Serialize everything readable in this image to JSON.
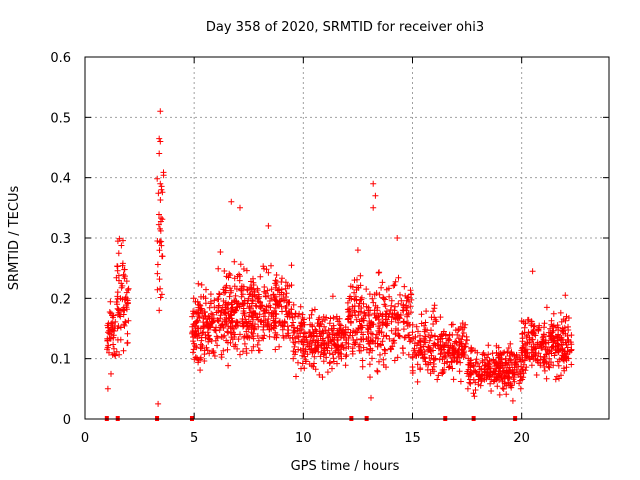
{
  "chart_data": {
    "type": "scatter",
    "title": "Day 358 of 2020, SRMTID for receiver ohi3",
    "xlabel": "GPS time / hours",
    "ylabel": "SRMTID / TECUs",
    "xlim": [
      0,
      24
    ],
    "ylim": [
      0,
      0.6
    ],
    "xticks": [
      "0",
      "5",
      "10",
      "15",
      "20"
    ],
    "yticks": [
      "0",
      "0.1",
      "0.2",
      "0.3",
      "0.4",
      "0.5",
      "0.6"
    ],
    "grid": true,
    "marker": "plus",
    "color": "#ff0000",
    "gap_markers_x": [
      1.0,
      1.5,
      3.3,
      4.9,
      12.2,
      12.9,
      16.5,
      17.8,
      19.7
    ],
    "clusters": [
      {
        "x": [
          1.0,
          1.4
        ],
        "y_center": 0.14,
        "y_spread": 0.045,
        "n": 45
      },
      {
        "x": [
          1.4,
          2.0
        ],
        "y_center": 0.2,
        "y_spread": 0.07,
        "n": 70
      },
      {
        "x": [
          3.3,
          3.6
        ],
        "y_center": 0.32,
        "y_spread": 0.12,
        "n": 30
      },
      {
        "x": [
          4.9,
          6.0
        ],
        "y_center": 0.15,
        "y_spread": 0.05,
        "n": 140
      },
      {
        "x": [
          6.0,
          9.5
        ],
        "y_center": 0.18,
        "y_spread": 0.055,
        "n": 420
      },
      {
        "x": [
          9.5,
          12.0
        ],
        "y_center": 0.13,
        "y_spread": 0.04,
        "n": 260
      },
      {
        "x": [
          12.0,
          15.0
        ],
        "y_center": 0.16,
        "y_spread": 0.06,
        "n": 300
      },
      {
        "x": [
          15.0,
          17.5
        ],
        "y_center": 0.12,
        "y_spread": 0.04,
        "n": 240
      },
      {
        "x": [
          17.5,
          20.0
        ],
        "y_center": 0.085,
        "y_spread": 0.03,
        "n": 260
      },
      {
        "x": [
          20.0,
          22.3
        ],
        "y_center": 0.12,
        "y_spread": 0.04,
        "n": 260
      }
    ],
    "highlights": [
      {
        "x": 3.45,
        "y": 0.51
      },
      {
        "x": 3.45,
        "y": 0.46
      },
      {
        "x": 3.4,
        "y": 0.44
      },
      {
        "x": 3.45,
        "y": 0.39
      },
      {
        "x": 3.5,
        "y": 0.38
      },
      {
        "x": 3.4,
        "y": 0.18
      },
      {
        "x": 3.35,
        "y": 0.025
      },
      {
        "x": 1.05,
        "y": 0.05
      },
      {
        "x": 6.7,
        "y": 0.36
      },
      {
        "x": 7.1,
        "y": 0.35
      },
      {
        "x": 8.4,
        "y": 0.32
      },
      {
        "x": 13.2,
        "y": 0.39
      },
      {
        "x": 13.3,
        "y": 0.37
      },
      {
        "x": 13.2,
        "y": 0.35
      },
      {
        "x": 12.5,
        "y": 0.28
      },
      {
        "x": 14.3,
        "y": 0.3
      },
      {
        "x": 13.1,
        "y": 0.035
      },
      {
        "x": 20.5,
        "y": 0.245
      },
      {
        "x": 22.0,
        "y": 0.205
      },
      {
        "x": 19.6,
        "y": 0.03
      },
      {
        "x": 19.0,
        "y": 0.04
      }
    ]
  }
}
